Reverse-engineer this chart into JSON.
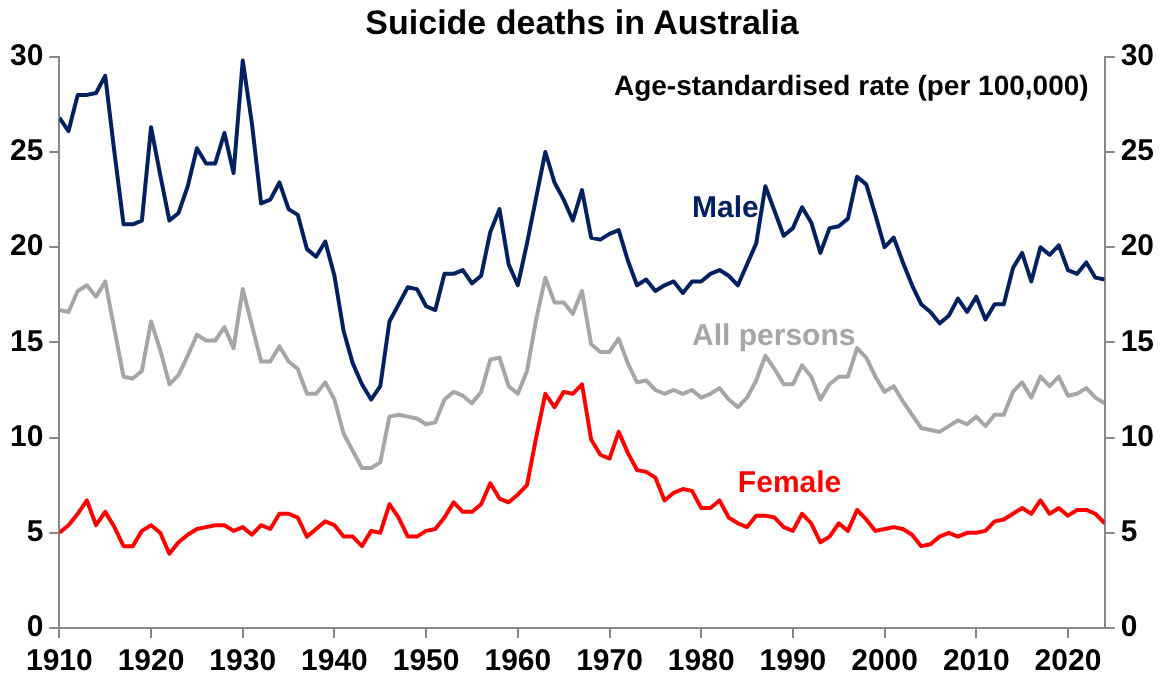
{
  "chart_data": {
    "type": "line",
    "title": "Suicide deaths in Australia",
    "annotations": [
      "Age-standardised rate (per 100,000)"
    ],
    "x": [
      1910,
      1911,
      1912,
      1913,
      1914,
      1915,
      1916,
      1917,
      1918,
      1919,
      1920,
      1921,
      1922,
      1923,
      1924,
      1925,
      1926,
      1927,
      1928,
      1929,
      1930,
      1931,
      1932,
      1933,
      1934,
      1935,
      1936,
      1937,
      1938,
      1939,
      1940,
      1941,
      1942,
      1943,
      1944,
      1945,
      1946,
      1947,
      1948,
      1949,
      1950,
      1951,
      1952,
      1953,
      1954,
      1955,
      1956,
      1957,
      1958,
      1959,
      1960,
      1961,
      1962,
      1963,
      1964,
      1965,
      1966,
      1967,
      1968,
      1969,
      1970,
      1971,
      1972,
      1973,
      1974,
      1975,
      1976,
      1977,
      1978,
      1979,
      1980,
      1981,
      1982,
      1983,
      1984,
      1985,
      1986,
      1987,
      1988,
      1989,
      1990,
      1991,
      1992,
      1993,
      1994,
      1995,
      1996,
      1997,
      1998,
      1999,
      2000,
      2001,
      2002,
      2003,
      2004,
      2005,
      2006,
      2007,
      2008,
      2009,
      2010,
      2011,
      2012,
      2013,
      2014,
      2015,
      2016,
      2017,
      2018,
      2019,
      2020,
      2021,
      2022,
      2023,
      2024
    ],
    "series": [
      {
        "name": "Male",
        "color": "#002060",
        "values": [
          26.8,
          26.1,
          28.0,
          28.0,
          28.1,
          29.0,
          25.0,
          21.2,
          21.2,
          21.4,
          26.3,
          23.8,
          21.4,
          21.8,
          23.2,
          25.2,
          24.4,
          24.4,
          26.0,
          23.9,
          29.8,
          26.5,
          22.3,
          22.5,
          23.4,
          22.0,
          21.7,
          19.9,
          19.5,
          20.3,
          18.5,
          15.6,
          13.9,
          12.8,
          12.0,
          12.7,
          16.1,
          17.0,
          17.9,
          17.8,
          16.9,
          16.7,
          18.6,
          18.6,
          18.8,
          18.1,
          18.5,
          20.8,
          22.0,
          19.1,
          18.0,
          20.2,
          22.6,
          25.0,
          23.4,
          22.5,
          21.4,
          23.0,
          20.5,
          20.4,
          20.7,
          20.9,
          19.3,
          18.0,
          18.3,
          17.7,
          18.0,
          18.2,
          17.6,
          18.2,
          18.2,
          18.6,
          18.8,
          18.5,
          18.0,
          19.1,
          20.2,
          23.2,
          21.9,
          20.6,
          21.0,
          22.1,
          21.3,
          19.7,
          21.0,
          21.1,
          21.5,
          23.7,
          23.3,
          21.7,
          20.0,
          20.5,
          19.2,
          18.0,
          17.0,
          16.6,
          16.0,
          16.4,
          17.3,
          16.6,
          17.4,
          16.2,
          17.0,
          17.0,
          18.9,
          19.7,
          18.2,
          20.0,
          19.6,
          20.1,
          18.8,
          18.6,
          19.2,
          18.4,
          18.3
        ]
      },
      {
        "name": "All persons",
        "color": "#a6a6a6",
        "values": [
          16.7,
          16.6,
          17.7,
          18.0,
          17.4,
          18.2,
          15.7,
          13.2,
          13.1,
          13.5,
          16.1,
          14.6,
          12.8,
          13.3,
          14.3,
          15.4,
          15.1,
          15.1,
          15.8,
          14.7,
          17.8,
          15.9,
          14.0,
          14.0,
          14.8,
          14.0,
          13.6,
          12.3,
          12.3,
          12.9,
          12.0,
          10.2,
          9.3,
          8.4,
          8.4,
          8.7,
          11.1,
          11.2,
          11.1,
          11.0,
          10.7,
          10.8,
          12.0,
          12.4,
          12.2,
          11.8,
          12.4,
          14.1,
          14.2,
          12.7,
          12.3,
          13.5,
          16.2,
          18.4,
          17.1,
          17.1,
          16.5,
          17.7,
          14.9,
          14.5,
          14.5,
          15.2,
          13.9,
          12.9,
          13.0,
          12.5,
          12.3,
          12.5,
          12.3,
          12.5,
          12.1,
          12.3,
          12.6,
          12.0,
          11.6,
          12.1,
          13.0,
          14.3,
          13.6,
          12.8,
          12.8,
          13.8,
          13.2,
          12.0,
          12.8,
          13.2,
          13.2,
          14.7,
          14.2,
          13.2,
          12.4,
          12.7,
          11.9,
          11.2,
          10.5,
          10.4,
          10.3,
          10.6,
          10.9,
          10.7,
          11.1,
          10.6,
          11.2,
          11.2,
          12.4,
          12.9,
          12.1,
          13.2,
          12.7,
          13.2,
          12.2,
          12.3,
          12.6,
          12.1,
          11.8
        ]
      },
      {
        "name": "Female",
        "color": "#ff0000",
        "values": [
          5.0,
          5.4,
          6.0,
          6.7,
          5.4,
          6.1,
          5.3,
          4.3,
          4.3,
          5.1,
          5.4,
          5.0,
          3.9,
          4.5,
          4.9,
          5.2,
          5.3,
          5.4,
          5.4,
          5.1,
          5.3,
          4.9,
          5.4,
          5.2,
          6.0,
          6.0,
          5.8,
          4.8,
          5.2,
          5.6,
          5.4,
          4.8,
          4.8,
          4.3,
          5.1,
          5.0,
          6.5,
          5.8,
          4.8,
          4.8,
          5.1,
          5.2,
          5.8,
          6.6,
          6.1,
          6.1,
          6.5,
          7.6,
          6.8,
          6.6,
          7.0,
          7.5,
          10.0,
          12.3,
          11.6,
          12.4,
          12.3,
          12.8,
          9.9,
          9.1,
          8.9,
          10.3,
          9.2,
          8.3,
          8.2,
          7.9,
          6.7,
          7.1,
          7.3,
          7.2,
          6.3,
          6.3,
          6.7,
          5.8,
          5.5,
          5.3,
          5.9,
          5.9,
          5.8,
          5.3,
          5.1,
          6.0,
          5.5,
          4.5,
          4.8,
          5.5,
          5.1,
          6.2,
          5.7,
          5.1,
          5.2,
          5.3,
          5.2,
          4.9,
          4.3,
          4.4,
          4.8,
          5.0,
          4.8,
          5.0,
          5.0,
          5.1,
          5.6,
          5.7,
          6.0,
          6.3,
          6.0,
          6.7,
          6.0,
          6.3,
          5.9,
          6.2,
          6.2,
          6.0,
          5.5
        ]
      }
    ],
    "xlim": [
      1910,
      2024
    ],
    "xticks": [
      1910,
      1920,
      1930,
      1940,
      1950,
      1960,
      1970,
      1980,
      1990,
      2000,
      2010,
      2020
    ],
    "ylim": [
      0,
      30
    ],
    "yticks": [
      0,
      5,
      10,
      15,
      20,
      25,
      30
    ],
    "y2lim": [
      0,
      30
    ],
    "y2ticks": [
      0,
      5,
      10,
      15,
      20,
      25,
      30
    ],
    "legend": false,
    "grid": false,
    "marker": "none",
    "line_style": "solid"
  }
}
